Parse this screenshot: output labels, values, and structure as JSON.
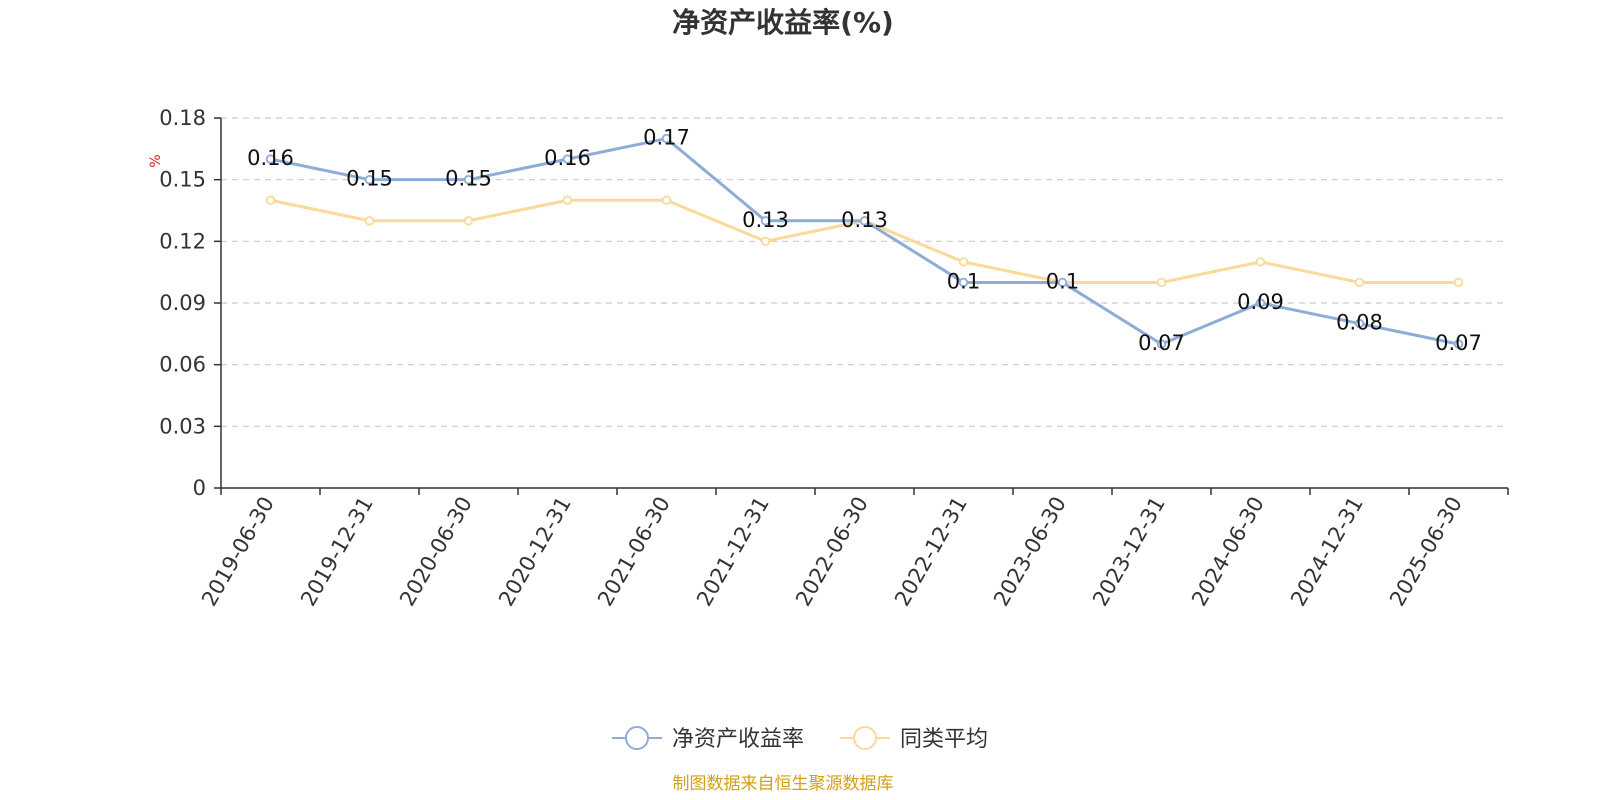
{
  "chart_data": {
    "type": "line",
    "title": "净资产收益率(%)",
    "ylabel": "%",
    "xlabel": "",
    "categories": [
      "2019-06-30",
      "2019-12-31",
      "2020-06-30",
      "2020-12-31",
      "2021-06-30",
      "2021-12-31",
      "2022-06-30",
      "2022-12-31",
      "2023-06-30",
      "2023-12-31",
      "2024-06-30",
      "2024-12-31",
      "2025-06-30"
    ],
    "series": [
      {
        "name": "净资产收益率",
        "values": [
          0.16,
          0.15,
          0.15,
          0.16,
          0.17,
          0.13,
          0.13,
          0.1,
          0.1,
          0.07,
          0.09,
          0.08,
          0.07
        ],
        "data_labels": [
          "0.16",
          "0.15",
          "0.15",
          "0.16",
          "0.17",
          "0.13",
          "0.13",
          "0.1",
          "0.1",
          "0.07",
          "0.09",
          "0.08",
          "0.07"
        ],
        "color": "#8eacd8"
      },
      {
        "name": "同类平均",
        "values": [
          0.14,
          0.13,
          0.13,
          0.14,
          0.14,
          0.12,
          0.13,
          0.11,
          0.1,
          0.1,
          0.11,
          0.1,
          0.1
        ],
        "color": "#fbd99a"
      }
    ],
    "ylim": [
      0,
      0.18
    ],
    "yticks": [
      "0",
      "0.03",
      "0.06",
      "0.09",
      "0.12",
      "0.15",
      "0.18"
    ],
    "ytick_values": [
      0,
      0.03,
      0.06,
      0.09,
      0.12,
      0.15,
      0.18
    ],
    "grid": true,
    "legend_position": "bottom-center",
    "source": "制图数据来自恒生聚源数据库",
    "colors": {
      "axis": "#333333",
      "grid": "#cccccc",
      "unit": "#e01c1c",
      "source": "#d4a017"
    }
  }
}
